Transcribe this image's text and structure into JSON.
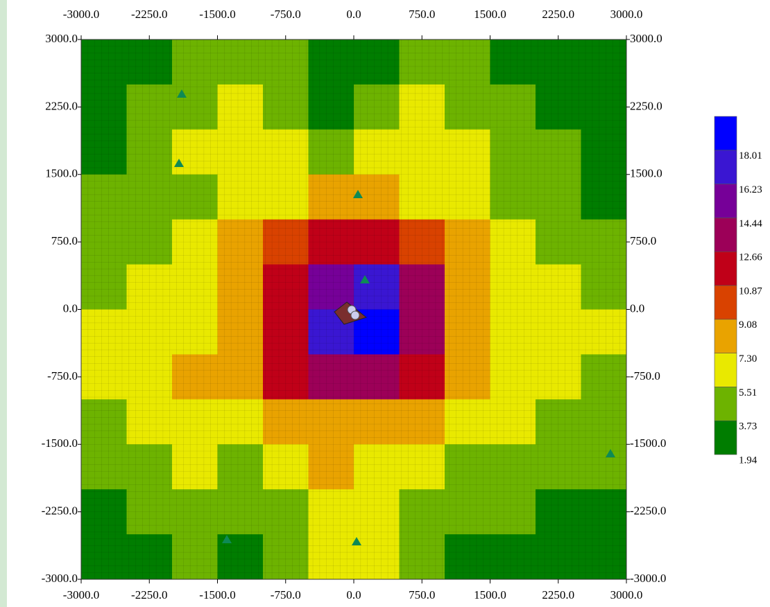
{
  "chart_data": {
    "type": "heatmap",
    "xlim": [
      -3000,
      3000
    ],
    "ylim": [
      -3000,
      3000
    ],
    "xticks": [
      {
        "value": -3000,
        "label": "-3000.0"
      },
      {
        "value": -2250,
        "label": "-2250.0"
      },
      {
        "value": -1500,
        "label": "-1500.0"
      },
      {
        "value": -750,
        "label": "-750.0"
      },
      {
        "value": 0,
        "label": "0.0"
      },
      {
        "value": 750,
        "label": "750.0"
      },
      {
        "value": 1500,
        "label": "1500.0"
      },
      {
        "value": 2250,
        "label": "2250.0"
      },
      {
        "value": 3000,
        "label": "3000.0"
      }
    ],
    "yticks": [
      {
        "value": -3000,
        "label": "-3000.0"
      },
      {
        "value": -2250,
        "label": "-2250.0"
      },
      {
        "value": -1500,
        "label": "-1500.0"
      },
      {
        "value": -750,
        "label": "-750.0"
      },
      {
        "value": 0,
        "label": "0.0"
      },
      {
        "value": 750,
        "label": "750.0"
      },
      {
        "value": 1500,
        "label": "1500.0"
      },
      {
        "value": 2250,
        "label": "2250.0"
      },
      {
        "value": 3000,
        "label": "3000.0"
      }
    ],
    "levels": [
      1.94,
      3.73,
      5.51,
      {
        "value": 7.3,
        "label": "7.30"
      },
      9.08,
      10.87,
      12.66,
      14.44,
      16.23,
      18.01
    ],
    "colors": [
      "#007d00",
      "#6db300",
      "#e9e900",
      "#e9a300",
      "#d94200",
      "#c00018",
      "#9c0058",
      "#760098",
      "#3a16d2",
      "#0000ff"
    ],
    "z": [
      [
        3,
        3,
        4,
        5,
        4,
        3,
        3,
        5,
        4,
        3,
        3,
        3
      ],
      [
        3,
        4,
        5,
        6,
        4,
        3,
        4,
        6,
        5,
        4,
        3,
        3
      ],
      [
        3,
        4,
        6,
        6,
        6,
        4,
        6,
        7,
        6,
        4,
        4,
        3
      ],
      [
        4,
        5,
        5,
        6,
        7,
        8,
        9,
        7,
        6,
        5,
        4,
        3
      ],
      [
        4,
        4,
        6,
        8,
        10,
        12,
        12,
        10,
        8,
        6,
        5,
        4
      ],
      [
        5,
        6,
        7,
        9,
        12,
        16,
        17,
        13,
        9,
        7,
        6,
        5
      ],
      [
        6,
        6,
        7,
        9,
        12,
        17,
        18.5,
        13,
        9,
        7,
        6,
        6
      ],
      [
        6,
        6,
        8,
        9,
        11,
        13,
        13,
        11,
        9,
        7,
        6,
        5
      ],
      [
        5,
        6,
        6,
        7,
        8,
        9,
        9,
        8,
        6,
        6,
        5,
        4
      ],
      [
        4,
        5,
        6,
        5,
        6,
        8,
        7,
        6,
        5,
        5,
        4,
        4
      ],
      [
        3,
        4,
        5,
        4,
        5,
        6,
        6,
        5,
        4,
        4,
        3,
        3
      ],
      [
        3,
        3,
        4,
        3,
        4,
        6,
        6,
        4,
        3,
        3,
        3,
        3
      ]
    ]
  }
}
